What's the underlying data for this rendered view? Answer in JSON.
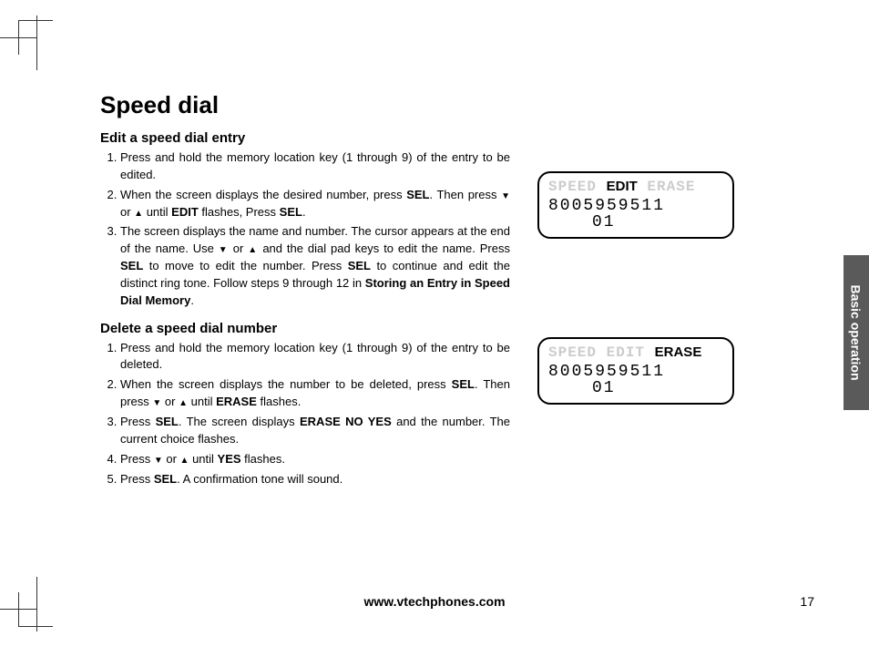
{
  "cropmarks": {
    "color": "#333333"
  },
  "title": "Speed dial",
  "section1": {
    "heading": "Edit a speed dial entry",
    "items": [
      {
        "pre": "Press and hold the memory location key (1 through 9) of the entry to be edited."
      },
      {
        "pre": "When the screen displays the desired number, press ",
        "b1": "SEL",
        "mid1": ". Then press ",
        "arr1": "▼",
        "mid2": " or ",
        "arr2": "▲",
        "mid3": " until ",
        "b2": "EDIT",
        "mid4": " flashes, Press ",
        "b3": "SEL",
        "post": "."
      },
      {
        "pre": "The screen displays the name and number. The cursor appears at the end of the name. Use ",
        "arr1": "▼",
        "mid1": " or ",
        "arr2": "▲",
        "mid2": " and the dial pad keys to edit the name. Press ",
        "b1": "SEL",
        "mid3": " to move to edit the number. Press ",
        "b2": "SEL",
        "mid4": " to continue and edit the distinct ring tone. Follow steps 9 through 12 in ",
        "b3": "Storing an Entry in Speed Dial Memory",
        "post": "."
      }
    ]
  },
  "section2": {
    "heading": "Delete a speed dial number",
    "items": [
      {
        "pre": "Press and hold the memory location key (1 through 9) of the entry to be deleted."
      },
      {
        "pre": "When the screen displays the number to be deleted, press ",
        "b1": "SEL",
        "mid1": ". Then press ",
        "arr1": "▼",
        "mid2": " or ",
        "arr2": "▲",
        "mid3": " until ",
        "b2": "ERASE",
        "post": " flashes."
      },
      {
        "pre": "Press ",
        "b1": "SEL",
        "mid1": ". The screen displays ",
        "b2": "ERASE NO YES",
        "mid2": " and the number. The current choice flashes."
      },
      {
        "pre": "Press ",
        "arr1": "▼",
        "mid1": " or ",
        "arr2": "▲",
        "mid2": " until ",
        "b1": "YES",
        "post": " flashes."
      },
      {
        "pre": "Press ",
        "b1": "SEL",
        "post": ". A confirmation tone will sound."
      }
    ]
  },
  "lcd1": {
    "w1": "SPEED",
    "w2": "EDIT",
    "w3": "ERASE",
    "selected": 2,
    "number": "8005959511",
    "sub": "01"
  },
  "lcd2": {
    "w1": "SPEED",
    "w2": "EDIT",
    "w3": "ERASE",
    "selected": 3,
    "number": "8005959511",
    "sub": "01"
  },
  "sidetab": "Basic operation",
  "footer": "www.vtechphones.com",
  "pagenum": "17",
  "colors": {
    "sidetab_bg": "#5a5a5a",
    "sidetab_fg": "#ffffff",
    "lcd_outline": "#cccccc",
    "text": "#000000"
  }
}
